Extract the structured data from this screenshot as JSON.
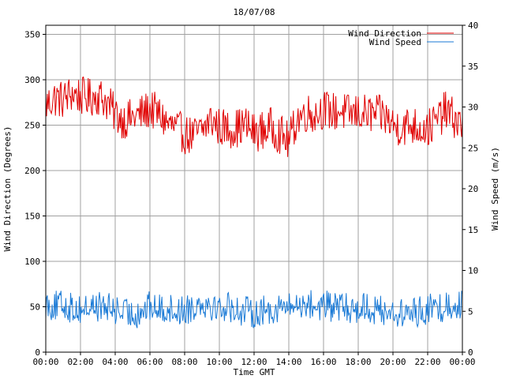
{
  "chart_data": {
    "type": "line",
    "title": "18/07/08",
    "xlabel": "Time GMT",
    "ylabel_left": "Wind Direction (Degrees)",
    "ylabel_right": "Wind Speed (m/s)",
    "x_ticks": [
      "00:00",
      "02:00",
      "04:00",
      "06:00",
      "08:00",
      "10:00",
      "12:00",
      "14:00",
      "16:00",
      "18:00",
      "20:00",
      "22:00",
      "00:00"
    ],
    "x_range_hours": [
      0,
      24
    ],
    "y_left_ticks": [
      "0",
      "50",
      "100",
      "150",
      "200",
      "250",
      "300",
      "350"
    ],
    "y_left_range": [
      0,
      360
    ],
    "y_right_ticks": [
      "0",
      "5",
      "10",
      "15",
      "20",
      "25",
      "30",
      "35",
      "40"
    ],
    "y_right_range": [
      0,
      40
    ],
    "grid": true,
    "legend_position": "top-right",
    "series": [
      {
        "name": "Wind Direction",
        "axis": "left",
        "color": "#e00000",
        "x_hours": [
          0,
          0.5,
          1,
          1.5,
          2,
          2.5,
          3,
          3.5,
          4,
          4.5,
          5,
          5.5,
          6,
          6.5,
          7,
          7.5,
          8,
          8.5,
          9,
          9.5,
          10,
          10.5,
          11,
          11.5,
          12,
          12.5,
          13,
          13.5,
          14,
          14.5,
          15,
          15.5,
          16,
          16.5,
          17,
          17.5,
          18,
          18.5,
          19,
          19.5,
          20,
          20.5,
          21,
          21.5,
          22,
          22.5,
          23,
          23.5,
          24
        ],
        "values": [
          272,
          280,
          278,
          285,
          282,
          280,
          283,
          276,
          262,
          256,
          258,
          262,
          268,
          262,
          252,
          246,
          240,
          238,
          244,
          256,
          248,
          246,
          247,
          250,
          242,
          244,
          248,
          240,
          232,
          258,
          264,
          262,
          268,
          264,
          266,
          262,
          264,
          262,
          262,
          260,
          250,
          248,
          250,
          248,
          246,
          254,
          266,
          258,
          248
        ]
      },
      {
        "name": "Wind Speed",
        "axis": "right",
        "color": "#1a7ad6",
        "x_hours": [
          0,
          0.5,
          1,
          1.5,
          2,
          2.5,
          3,
          3.5,
          4,
          4.5,
          5,
          5.5,
          6,
          6.5,
          7,
          7.5,
          8,
          8.5,
          9,
          9.5,
          10,
          10.5,
          11,
          11.5,
          12,
          12.5,
          13,
          13.5,
          14,
          14.5,
          15,
          15.5,
          16,
          16.5,
          17,
          17.5,
          18,
          18.5,
          19,
          19.5,
          20,
          20.5,
          21,
          21.5,
          22,
          22.5,
          23,
          23.5,
          24
        ],
        "values": [
          6.0,
          5.6,
          5.8,
          5.4,
          5.2,
          5.5,
          5.6,
          5.4,
          5.2,
          4.8,
          4.6,
          5.0,
          5.6,
          5.2,
          5.4,
          5.0,
          5.2,
          5.6,
          6.2,
          5.8,
          5.4,
          5.6,
          5.2,
          5.0,
          4.8,
          5.0,
          5.2,
          5.6,
          5.4,
          5.8,
          6.0,
          5.6,
          5.8,
          5.4,
          5.6,
          5.2,
          5.4,
          5.6,
          5.0,
          5.2,
          4.8,
          4.6,
          4.8,
          5.0,
          5.2,
          5.4,
          5.6,
          5.8,
          6.0
        ]
      }
    ]
  }
}
